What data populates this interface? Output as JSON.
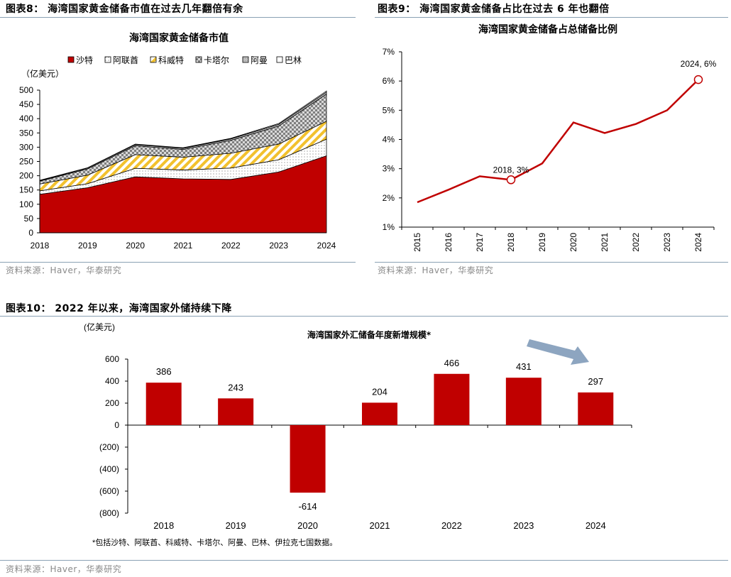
{
  "captions": {
    "fig8": "图表8：  海湾国家黄金储备市值在过去几年翻倍有余",
    "fig9": "图表9：  海湾国家黄金储备占比在过去 6 年也翻倍",
    "fig10": "图表10：  2022 年以来，海湾国家外储持续下降"
  },
  "sources": {
    "fig8": "资料来源：Haver，华泰研究",
    "fig9": "资料来源：Haver，华泰研究",
    "fig10": "资料来源：Haver，华泰研究"
  },
  "colors": {
    "red": "#c00000",
    "yellow": "#f2c12e",
    "grey_check": "#8c8c8c",
    "arrow": "#8da5c0",
    "rule": "#8aa1b4"
  },
  "chart_data": [
    {
      "type": "area",
      "stacked": true,
      "title": "海湾国家黄金储备市值",
      "unit_label": "（亿美元）",
      "x": [
        "2018",
        "2019",
        "2020",
        "2021",
        "2022",
        "2023",
        "2024"
      ],
      "ylim": [
        0,
        500
      ],
      "yticks": [
        "0",
        "50",
        "100",
        "150",
        "200",
        "250",
        "300",
        "350",
        "400",
        "450",
        "500"
      ],
      "legend_position": "top",
      "series": [
        {
          "name": "沙特",
          "values": [
            135,
            158,
            196,
            189,
            187,
            213,
            270
          ]
        },
        {
          "name": "阿联酋",
          "values": [
            12,
            14,
            30,
            31,
            40,
            43,
            58
          ]
        },
        {
          "name": "科威特",
          "values": [
            24,
            30,
            48,
            45,
            52,
            55,
            63
          ]
        },
        {
          "name": "卡塔尔",
          "values": [
            10,
            22,
            31,
            27,
            45,
            63,
            95
          ]
        },
        {
          "name": "阿曼",
          "values": [
            2,
            3,
            4,
            4,
            5,
            6,
            7
          ]
        },
        {
          "name": "巴林",
          "values": [
            1,
            1,
            2,
            2,
            2,
            3,
            4
          ]
        }
      ]
    },
    {
      "type": "line",
      "title": "海湾国家黄金储备占总储备比例",
      "x": [
        "2015",
        "2016",
        "2017",
        "2018",
        "2019",
        "2020",
        "2021",
        "2022",
        "2023",
        "2024"
      ],
      "values": [
        1.85,
        2.28,
        2.74,
        2.62,
        3.18,
        4.58,
        4.22,
        4.53,
        5.0,
        6.05
      ],
      "ylim": [
        1,
        7
      ],
      "yticks": [
        "1%",
        "2%",
        "3%",
        "4%",
        "5%",
        "6%",
        "7%"
      ],
      "annotations": [
        {
          "label": "2018, 3%",
          "index": 3
        },
        {
          "label": "2024, 6%",
          "index": 9
        }
      ],
      "grid": false
    },
    {
      "type": "bar",
      "title": "海湾国家外汇储备年度新增规模*",
      "unit_label": "(亿美元)",
      "categories": [
        "2018",
        "2019",
        "2020",
        "2021",
        "2022",
        "2023",
        "2024"
      ],
      "values": [
        386,
        243,
        -614,
        204,
        466,
        431,
        297
      ],
      "data_labels": [
        "386",
        "243",
        "-614",
        "204",
        "466",
        "431",
        "297"
      ],
      "ylim": [
        -800,
        600
      ],
      "yticks": [
        "600",
        "400",
        "200",
        "0",
        "(200)",
        "(400)",
        "(600)",
        "(800)"
      ],
      "footnote": "*包括沙特、阿联酋、科威特、卡塔尔、阿曼、巴林、伊拉克七国数据。"
    }
  ]
}
